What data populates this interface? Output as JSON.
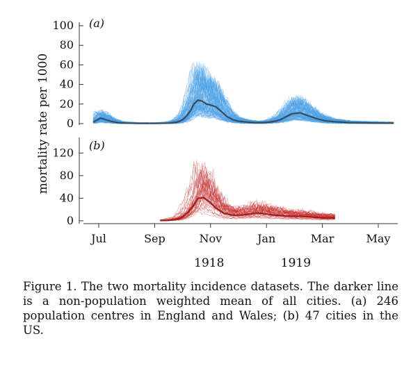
{
  "chart_data": [
    {
      "id": "a",
      "panel_label": "(a)",
      "type": "line",
      "ylim": [
        0,
        100
      ],
      "yticks": [
        "100",
        "80",
        "60",
        "40",
        "20",
        "0"
      ],
      "ytick_values": [
        100,
        80,
        60,
        40,
        20,
        0
      ],
      "color_individual": "#4aa3e6",
      "color_mean": "#3a4a5a",
      "n_series": 246,
      "x_start_month": 6.8,
      "x_end_month": 17.55,
      "mean_series": {
        "name": "",
        "x": [
          6.8,
          6.95,
          7.05,
          7.15,
          7.3,
          7.5,
          7.7,
          8.0,
          8.5,
          9.0,
          9.5,
          9.8,
          10.0,
          10.15,
          10.3,
          10.4,
          10.55,
          10.7,
          10.85,
          11.0,
          11.2,
          11.4,
          11.6,
          11.8,
          12.0,
          12.3,
          12.6,
          12.9,
          13.1,
          13.3,
          13.5,
          13.7,
          13.9,
          14.2,
          14.5,
          14.8,
          15.1,
          15.4,
          15.7,
          16.0,
          16.5,
          17.0,
          17.55
        ],
        "y": [
          1.5,
          4,
          5.5,
          5,
          3.5,
          2,
          1,
          0.5,
          0.2,
          0.2,
          0.5,
          1.5,
          4,
          8,
          14,
          20,
          24,
          23,
          20,
          19,
          17,
          12,
          7,
          4,
          2.5,
          1.5,
          1,
          1,
          1.5,
          2.5,
          4,
          7,
          10,
          11,
          8,
          5,
          3,
          2,
          1.5,
          1,
          0.8,
          0.6,
          0.5
        ]
      }
    },
    {
      "id": "b",
      "panel_label": "(b)",
      "type": "line",
      "ylim": [
        -5,
        145
      ],
      "yticks": [
        "120",
        "80",
        "40",
        "0"
      ],
      "ytick_values": [
        120,
        80,
        40,
        0
      ],
      "color_individual": "#c62828",
      "color_mean": "#9e1f1f",
      "n_series": 47,
      "x_start_month": 9.2,
      "x_end_month": 15.45,
      "mean_series": {
        "name": "",
        "x": [
          9.2,
          9.5,
          9.8,
          10.0,
          10.2,
          10.4,
          10.55,
          10.75,
          10.95,
          11.2,
          11.5,
          11.8,
          12.1,
          12.4,
          12.7,
          13.0,
          13.3,
          13.6,
          13.9,
          14.2,
          14.5,
          14.8,
          15.1,
          15.45
        ],
        "y": [
          0.5,
          1,
          3,
          7,
          15,
          28,
          40,
          41,
          34,
          22,
          13,
          10,
          10,
          12,
          14,
          12,
          10,
          9,
          8,
          8,
          7,
          6,
          5,
          5
        ]
      }
    }
  ],
  "x_axis": {
    "ticks": [
      {
        "label": "Jul",
        "month": 7
      },
      {
        "label": "Sep",
        "month": 9
      },
      {
        "label": "Nov",
        "month": 11
      },
      {
        "label": "Jan",
        "month": 13
      },
      {
        "label": "Mar",
        "month": 15
      },
      {
        "label": "May",
        "month": 17
      }
    ],
    "years": [
      {
        "label": "1918",
        "month": 10.95
      },
      {
        "label": "1919",
        "month": 14.05
      }
    ]
  },
  "ylabel": "mortality rate per 1000",
  "caption": "Figure 1. The two mortality incidence datasets. The darker line is a non-population weighted mean of all cities. (a) 246 population centres in England and Wales; (b) 47 cities in the US."
}
